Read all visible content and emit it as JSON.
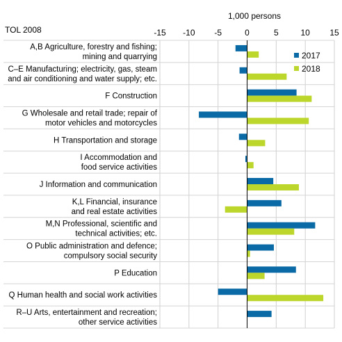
{
  "chart_data": {
    "type": "bar",
    "orientation": "horizontal",
    "unit_label": "1,000 persons",
    "category_header": "TOL 2008",
    "xlim": [
      -15,
      15
    ],
    "xticks": [
      "-15",
      "-10",
      "-5",
      "0",
      "5",
      "10",
      "15"
    ],
    "grid": true,
    "legend_position": "top-right",
    "categories": [
      [
        "A,B Agriculture, forestry and fishing;",
        "mining and quarrying"
      ],
      [
        "C–E Manufacturing; electricity, gas, steam",
        "and air conditioning and water supply; etc."
      ],
      [
        "F Construction"
      ],
      [
        "G Wholesale and retail trade; repair of",
        "motor vehicles and motorcycles"
      ],
      [
        "H Transportation and storage"
      ],
      [
        "I Accommodation and",
        "food service activities"
      ],
      [
        "J Information and communication"
      ],
      [
        "K,L Financial, insurance",
        "and real estate activities"
      ],
      [
        "M,N Professional, scientific and",
        "technical activities; etc."
      ],
      [
        "O Public administration and defence;",
        "compulsory social security"
      ],
      [
        "P Education"
      ],
      [
        "Q Human health and social work activities"
      ],
      [
        "R–U Arts, entertainment and recreation;",
        "other service activities"
      ]
    ],
    "series": [
      {
        "name": "2017",
        "color": "#0a6aa6",
        "values": [
          -2.0,
          -1.3,
          8.5,
          -8.3,
          -1.4,
          -0.3,
          4.5,
          5.9,
          11.7,
          4.6,
          8.4,
          -5.0,
          4.2
        ]
      },
      {
        "name": "2018",
        "color": "#bdd62c",
        "values": [
          2.0,
          6.8,
          11.1,
          10.6,
          3.1,
          1.1,
          8.9,
          -3.8,
          8.1,
          0.5,
          3.0,
          13.1,
          0.0
        ]
      }
    ]
  }
}
